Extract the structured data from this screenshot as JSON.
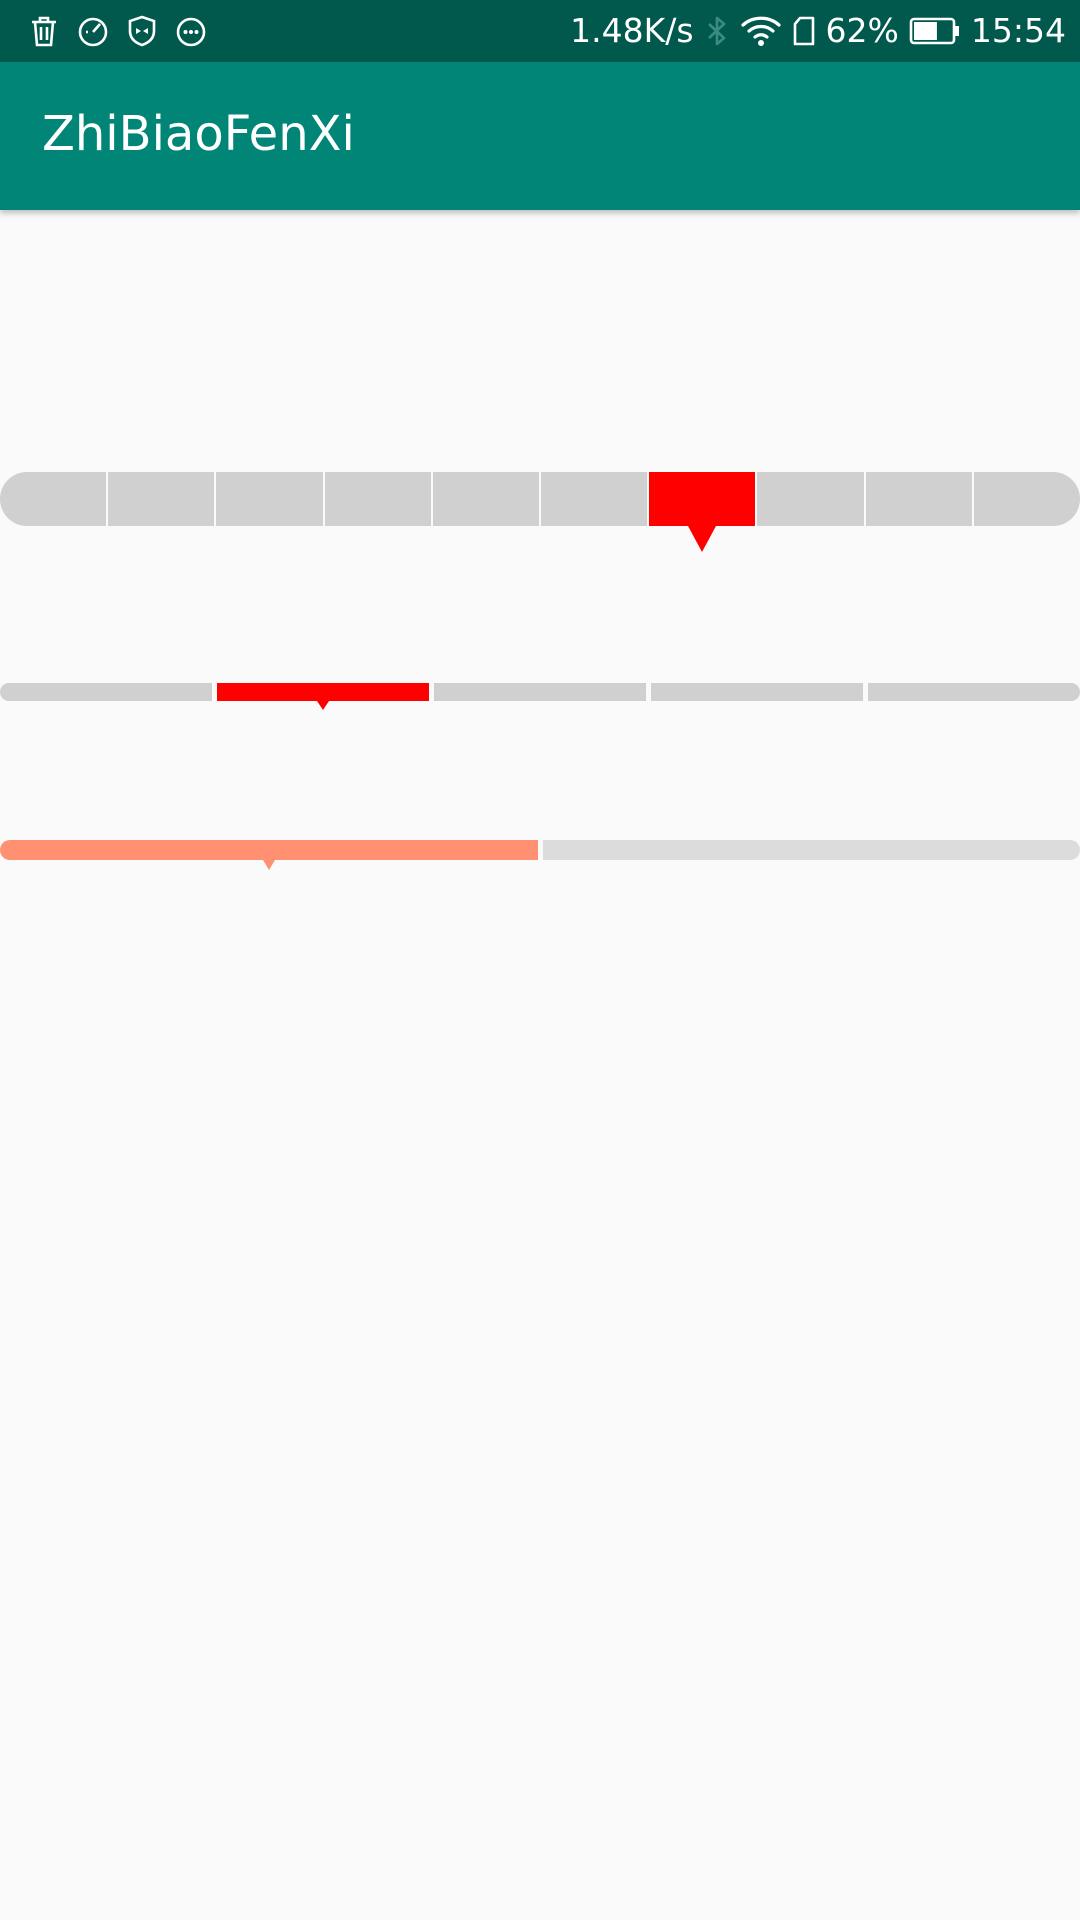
{
  "status_bar": {
    "left_icons": [
      "trash-icon",
      "speedometer-icon",
      "shield-icon",
      "more-horiz-icon"
    ],
    "network_speed": "1.48K/s",
    "battery_percent": "62%",
    "battery_level": 0.62,
    "time": "15:54",
    "right_icons": [
      "bluetooth-icon",
      "wifi-icon",
      "sim-card-icon",
      "battery-icon"
    ]
  },
  "app_bar": {
    "title": "ZhiBiaoFenXi"
  },
  "indicators": [
    {
      "segments": 10,
      "active_segment": 6,
      "active_color": "#ff0000",
      "inactive_color": "#d0d0d0",
      "style": "thick-rounded"
    },
    {
      "segments": 5,
      "active_segment": 1,
      "active_color": "#ff0000",
      "inactive_color": "#d0d0d0",
      "style": "thin-rounded"
    },
    {
      "segments": 2,
      "active_segment": 0,
      "active_color": "#ff9172",
      "inactive_color": "#dcdcdc",
      "style": "thin-rounded"
    }
  ],
  "colors": {
    "status_bar": "#00594c",
    "app_bar": "#008577",
    "background": "#fafafa"
  }
}
